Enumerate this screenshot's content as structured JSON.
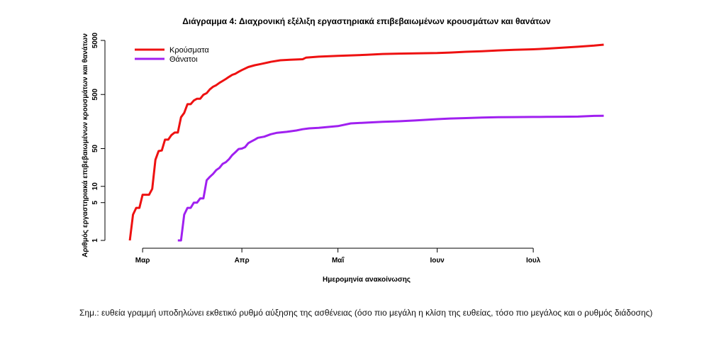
{
  "chart_data": {
    "type": "line",
    "title": "Διάγραμμα 4: Διαχρονική εξέλιξη εργαστηριακά επιβεβαιωμένων κρουσμάτων και θανάτων",
    "xlabel": "Ημερομηνία ανακοίνωσης",
    "ylabel": "Αριθμός εργαστηριακά επιβεβαιωμένων κρουσμάτων και θανάτων",
    "y_scale": "log",
    "ylim": [
      1,
      5000
    ],
    "y_ticks": [
      1,
      5,
      10,
      50,
      500,
      5000
    ],
    "x_range": [
      "2020-02-22",
      "2020-07-26"
    ],
    "x_ticks": [
      {
        "date": "2020-03-01",
        "label": "Μαρ"
      },
      {
        "date": "2020-04-01",
        "label": "Απρ"
      },
      {
        "date": "2020-05-01",
        "label": "Μαΐ"
      },
      {
        "date": "2020-06-01",
        "label": "Ιουν"
      },
      {
        "date": "2020-07-01",
        "label": "Ιουλ"
      }
    ],
    "grid": false,
    "legend_position": "top-left",
    "series": [
      {
        "name": "Κρούσματα",
        "color": "#ee1111",
        "points": [
          [
            "2020-02-26",
            1
          ],
          [
            "2020-02-27",
            3
          ],
          [
            "2020-02-28",
            4
          ],
          [
            "2020-02-29",
            4
          ],
          [
            "2020-03-01",
            7
          ],
          [
            "2020-03-03",
            7
          ],
          [
            "2020-03-04",
            9
          ],
          [
            "2020-03-05",
            31
          ],
          [
            "2020-03-06",
            45
          ],
          [
            "2020-03-07",
            46
          ],
          [
            "2020-03-08",
            73
          ],
          [
            "2020-03-09",
            73
          ],
          [
            "2020-03-10",
            89
          ],
          [
            "2020-03-11",
            99
          ],
          [
            "2020-03-12",
            99
          ],
          [
            "2020-03-13",
            190
          ],
          [
            "2020-03-14",
            228
          ],
          [
            "2020-03-15",
            331
          ],
          [
            "2020-03-16",
            331
          ],
          [
            "2020-03-17",
            387
          ],
          [
            "2020-03-18",
            418
          ],
          [
            "2020-03-19",
            418
          ],
          [
            "2020-03-20",
            495
          ],
          [
            "2020-03-21",
            530
          ],
          [
            "2020-03-22",
            624
          ],
          [
            "2020-03-23",
            695
          ],
          [
            "2020-03-24",
            743
          ],
          [
            "2020-03-25",
            821
          ],
          [
            "2020-03-26",
            892
          ],
          [
            "2020-03-27",
            966
          ],
          [
            "2020-03-28",
            1061
          ],
          [
            "2020-03-29",
            1156
          ],
          [
            "2020-03-30",
            1212
          ],
          [
            "2020-03-31",
            1314
          ],
          [
            "2020-04-01",
            1415
          ],
          [
            "2020-04-03",
            1613
          ],
          [
            "2020-04-05",
            1735
          ],
          [
            "2020-04-07",
            1832
          ],
          [
            "2020-04-10",
            2011
          ],
          [
            "2020-04-13",
            2145
          ],
          [
            "2020-04-16",
            2192
          ],
          [
            "2020-04-20",
            2245
          ],
          [
            "2020-04-21",
            2401
          ],
          [
            "2020-04-25",
            2506
          ],
          [
            "2020-05-01",
            2591
          ],
          [
            "2020-05-05",
            2642
          ],
          [
            "2020-05-10",
            2710
          ],
          [
            "2020-05-15",
            2810
          ],
          [
            "2020-05-20",
            2850
          ],
          [
            "2020-05-25",
            2882
          ],
          [
            "2020-06-01",
            2918
          ],
          [
            "2020-06-05",
            2980
          ],
          [
            "2020-06-10",
            3083
          ],
          [
            "2020-06-15",
            3148
          ],
          [
            "2020-06-20",
            3266
          ],
          [
            "2020-06-25",
            3343
          ],
          [
            "2020-07-01",
            3432
          ],
          [
            "2020-07-05",
            3519
          ],
          [
            "2020-07-10",
            3672
          ],
          [
            "2020-07-15",
            3826
          ],
          [
            "2020-07-20",
            4007
          ],
          [
            "2020-07-23",
            4166
          ]
        ]
      },
      {
        "name": "Θάνατοι",
        "color": "#a020f0",
        "points": [
          [
            "2020-03-12",
            1
          ],
          [
            "2020-03-13",
            1
          ],
          [
            "2020-03-14",
            3
          ],
          [
            "2020-03-15",
            4
          ],
          [
            "2020-03-16",
            4
          ],
          [
            "2020-03-17",
            5
          ],
          [
            "2020-03-18",
            5
          ],
          [
            "2020-03-19",
            6
          ],
          [
            "2020-03-20",
            6
          ],
          [
            "2020-03-21",
            13
          ],
          [
            "2020-03-22",
            15
          ],
          [
            "2020-03-23",
            17
          ],
          [
            "2020-03-24",
            20
          ],
          [
            "2020-03-25",
            22
          ],
          [
            "2020-03-26",
            26
          ],
          [
            "2020-03-27",
            28
          ],
          [
            "2020-03-28",
            32
          ],
          [
            "2020-03-29",
            38
          ],
          [
            "2020-03-30",
            43
          ],
          [
            "2020-03-31",
            49
          ],
          [
            "2020-04-01",
            50
          ],
          [
            "2020-04-02",
            53
          ],
          [
            "2020-04-03",
            63
          ],
          [
            "2020-04-04",
            68
          ],
          [
            "2020-04-05",
            73
          ],
          [
            "2020-04-06",
            79
          ],
          [
            "2020-04-08",
            83
          ],
          [
            "2020-04-10",
            92
          ],
          [
            "2020-04-12",
            98
          ],
          [
            "2020-04-15",
            102
          ],
          [
            "2020-04-18",
            108
          ],
          [
            "2020-04-20",
            114
          ],
          [
            "2020-04-22",
            118
          ],
          [
            "2020-04-25",
            121
          ],
          [
            "2020-05-01",
            130
          ],
          [
            "2020-05-05",
            146
          ],
          [
            "2020-05-10",
            151
          ],
          [
            "2020-05-15",
            156
          ],
          [
            "2020-05-20",
            160
          ],
          [
            "2020-05-25",
            165
          ],
          [
            "2020-06-01",
            175
          ],
          [
            "2020-06-05",
            180
          ],
          [
            "2020-06-10",
            183
          ],
          [
            "2020-06-15",
            187
          ],
          [
            "2020-06-20",
            190
          ],
          [
            "2020-06-25",
            191
          ],
          [
            "2020-07-01",
            192
          ],
          [
            "2020-07-05",
            193
          ],
          [
            "2020-07-10",
            194
          ],
          [
            "2020-07-15",
            195
          ],
          [
            "2020-07-20",
            201
          ],
          [
            "2020-07-23",
            202
          ]
        ]
      }
    ]
  },
  "note": "Σημ.: ευθεία γραμμή υποδηλώνει εκθετικό ρυθμό αύξησης της ασθένειας (όσο πιο μεγάλη η κλίση της ευθείας, τόσο πιο μεγάλος και ο ρυθμός διάδοσης)"
}
